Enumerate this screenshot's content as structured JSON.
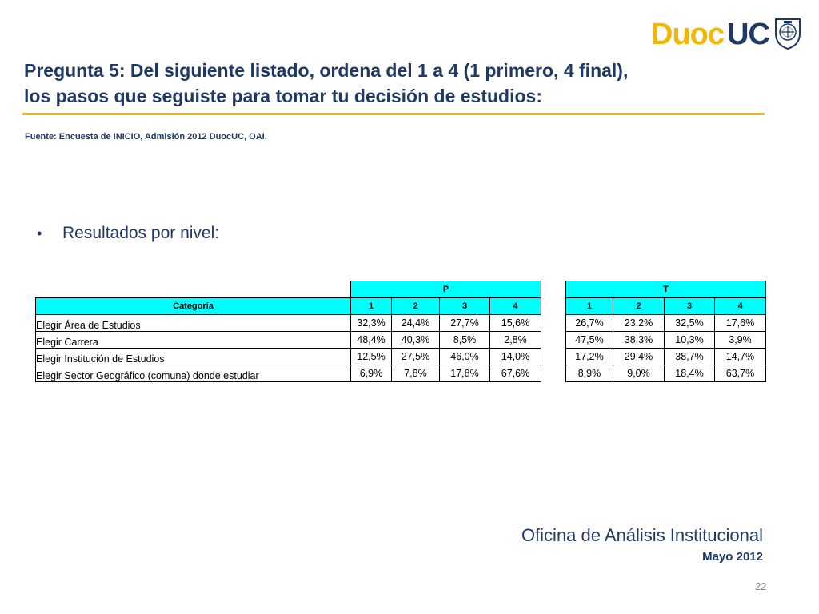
{
  "slide": {
    "title_line1": "Pregunta 5: Del siguiente listado, ordena del 1 a 4 (1 primero, 4 final),",
    "title_line2": "los pasos que seguiste para tomar tu decisión de estudios:",
    "source": "Fuente: Encuesta de INICIO, Admisión 2012 DuocUC, OAI.",
    "bullet": "Resultados por nivel:",
    "footer_office": "Oficina de Análisis Institucional",
    "footer_date": "Mayo 2012",
    "page_number": "22"
  },
  "logo": {
    "part1": "Duoc",
    "part2": "UC",
    "brand_yellow": "#f2b700",
    "brand_blue": "#1f3864"
  },
  "table": {
    "group_p": "P",
    "group_t": "T",
    "category_header": "Categoría",
    "rank_headers": [
      "1",
      "2",
      "3",
      "4"
    ],
    "header_color": "#00ffff",
    "rows": [
      {
        "category": "Elegir Área de Estudios",
        "p": [
          "32,3%",
          "24,4%",
          "27,7%",
          "15,6%"
        ],
        "t": [
          "26,7%",
          "23,2%",
          "32,5%",
          "17,6%"
        ]
      },
      {
        "category": "Elegir Carrera",
        "p": [
          "48,4%",
          "40,3%",
          "8,5%",
          "2,8%"
        ],
        "t": [
          "47,5%",
          "38,3%",
          "10,3%",
          "3,9%"
        ]
      },
      {
        "category": "Elegir Institución de Estudios",
        "p": [
          "12,5%",
          "27,5%",
          "46,0%",
          "14,0%"
        ],
        "t": [
          "17,2%",
          "29,4%",
          "38,7%",
          "14,7%"
        ]
      },
      {
        "category": "Elegir Sector Geográfico (comuna) donde estudiar",
        "p": [
          "6,9%",
          "7,8%",
          "17,8%",
          "67,6%"
        ],
        "t": [
          "8,9%",
          "9,0%",
          "18,4%",
          "63,7%"
        ]
      }
    ]
  }
}
